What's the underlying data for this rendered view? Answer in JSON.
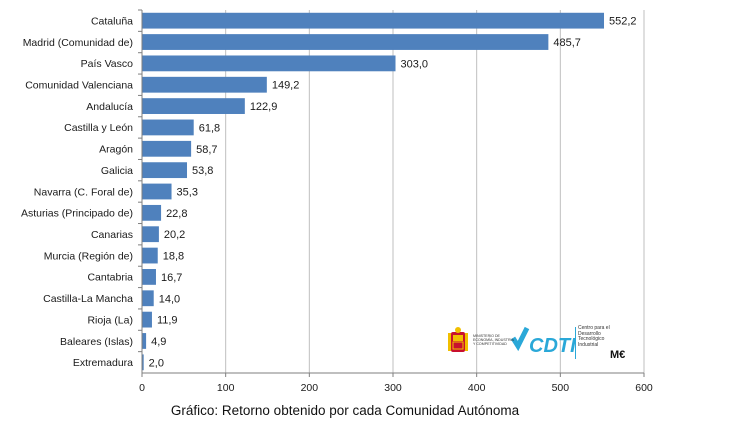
{
  "chart_data": {
    "type": "bar",
    "orientation": "horizontal",
    "categories": [
      "Cataluña",
      "Madrid (Comunidad de)",
      "País Vasco",
      "Comunidad Valenciana",
      "Andalucía",
      "Castilla y León",
      "Aragón",
      "Galicia",
      "Navarra (C. Foral de)",
      "Asturias (Principado de)",
      "Canarias",
      "Murcia (Región de)",
      "Cantabria",
      "Castilla-La Mancha",
      "Rioja (La)",
      "Baleares (Islas)",
      "Extremadura"
    ],
    "values": [
      552.2,
      485.7,
      303.0,
      149.2,
      122.9,
      61.8,
      58.7,
      53.8,
      35.3,
      22.8,
      20.2,
      18.8,
      16.7,
      14.0,
      11.9,
      4.9,
      2.0
    ],
    "value_labels": [
      "552,2",
      "485,7",
      "303,0",
      "149,2",
      "122,9",
      "61,8",
      "58,7",
      "53,8",
      "35,3",
      "22,8",
      "20,2",
      "18,8",
      "16,7",
      "14,0",
      "11,9",
      "4,9",
      "2,0"
    ],
    "xlim": [
      0,
      600
    ],
    "xticks": [
      0,
      100,
      200,
      300,
      400,
      500,
      600
    ],
    "xtick_labels": [
      "0",
      "100",
      "200",
      "300",
      "400",
      "500",
      "600"
    ],
    "unit": "M€",
    "grid": true,
    "bar_color": "#4f81bd",
    "caption": "Gráfico: Retorno obtenido por cada Comunidad Autónoma"
  },
  "logos": {
    "ministerio_text": "MINISTERIO DE ECONOMÍA, INDUSTRIA Y COMPETITIVIDAD",
    "cdti_wordmark": "CDTI",
    "cdti_text": "Centro para el Desarrollo Tecnológico Industrial"
  }
}
